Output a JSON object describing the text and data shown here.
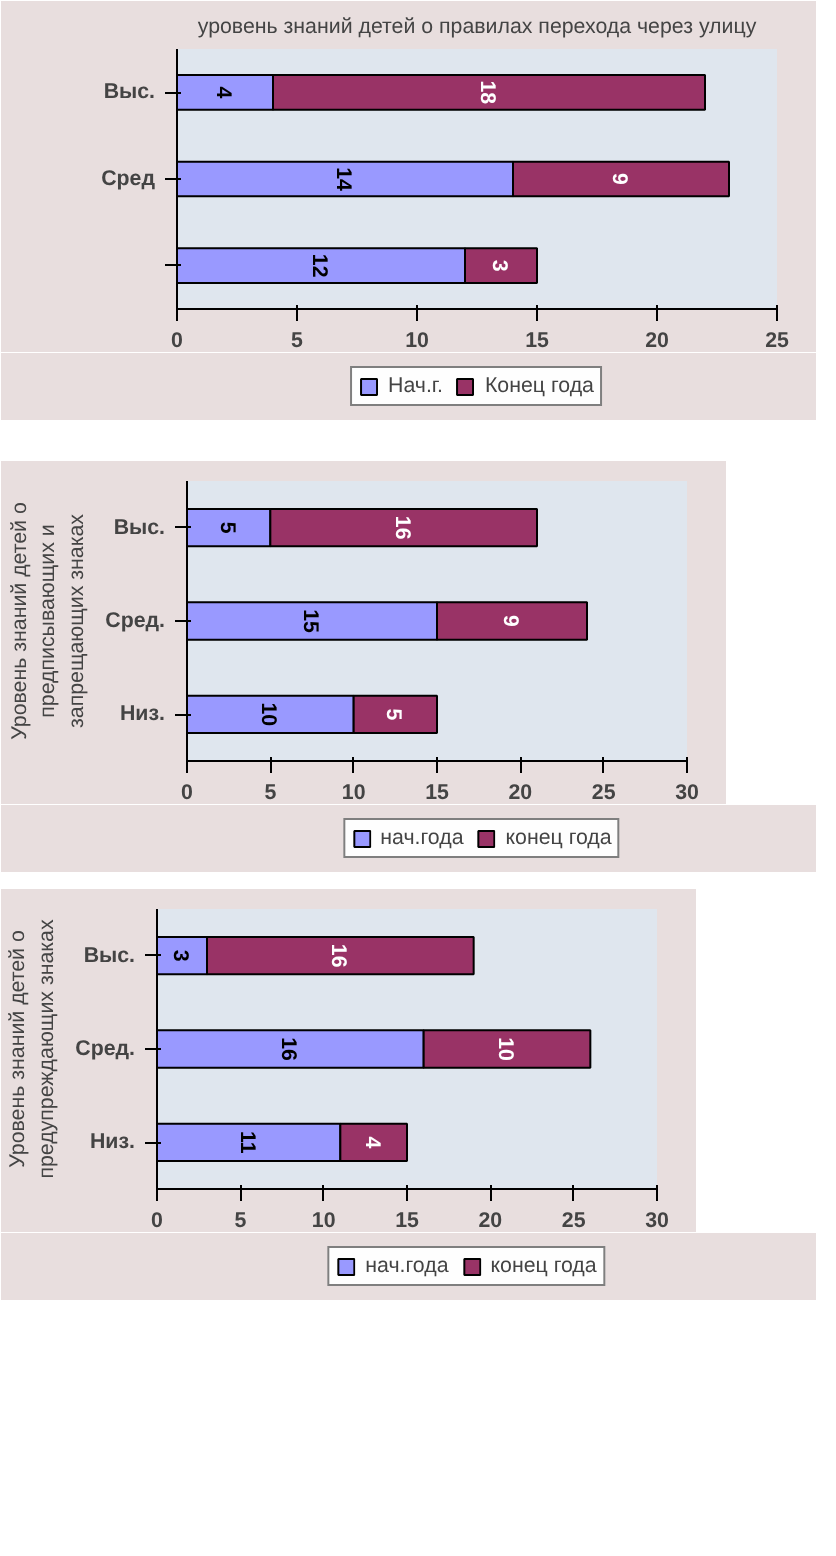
{
  "chart_data": [
    {
      "type": "bar",
      "orientation": "horizontal",
      "stacked": true,
      "title": "уровень знаний детей о правилах перехода через улицу",
      "categories": [
        "Выс.",
        "Сред",
        null
      ],
      "series": [
        {
          "name": "Нач.г.",
          "color": "#9999ff",
          "values": [
            4,
            14,
            12
          ]
        },
        {
          "name": "Конец года",
          "color": "#993366",
          "values": [
            18,
            9,
            3
          ]
        }
      ],
      "xlim": [
        0,
        25
      ],
      "xticks": [
        0,
        5,
        10,
        15,
        20,
        25
      ],
      "data_labels": true,
      "grid": false,
      "legend": "bottom"
    },
    {
      "type": "bar",
      "orientation": "horizontal",
      "stacked": true,
      "ylabel": "Уровень знаний детей о предписывающих и запрещающих знаках",
      "categories": [
        "Выс.",
        "Сред.",
        "Низ."
      ],
      "series": [
        {
          "name": "нач.года",
          "color": "#9999ff",
          "values": [
            5,
            15,
            10
          ]
        },
        {
          "name": "конец года",
          "color": "#993366",
          "values": [
            16,
            9,
            5
          ]
        }
      ],
      "xlim": [
        0,
        30
      ],
      "xticks": [
        0,
        5,
        10,
        15,
        20,
        25,
        30
      ],
      "data_labels": true,
      "grid": false,
      "legend": "bottom"
    },
    {
      "type": "bar",
      "orientation": "horizontal",
      "stacked": true,
      "ylabel": "Уровень знаний детей о предупреждающих знаках",
      "categories": [
        "Выс.",
        "Сред.",
        "Низ."
      ],
      "series": [
        {
          "name": "нач.года",
          "color": "#9999ff",
          "values": [
            3,
            16,
            11
          ]
        },
        {
          "name": "конец года",
          "color": "#993366",
          "values": [
            16,
            10,
            4
          ]
        }
      ],
      "xlim": [
        0,
        30
      ],
      "xticks": [
        0,
        5,
        10,
        15,
        20,
        25,
        30
      ],
      "data_labels": true,
      "grid": false,
      "legend": "bottom"
    }
  ]
}
